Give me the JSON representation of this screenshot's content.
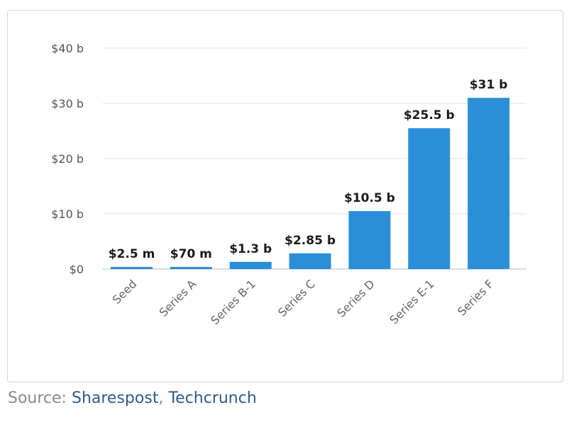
{
  "chart_data": {
    "type": "bar",
    "title": "",
    "xlabel": "",
    "ylabel": "",
    "categories": [
      "Seed",
      "Series A",
      "Series B-1",
      "Series C",
      "Series D",
      "Series E-1",
      "Series F"
    ],
    "values": [
      0.0025,
      0.07,
      1.3,
      2.85,
      10.5,
      25.5,
      31
    ],
    "data_labels": [
      "$2.5 m",
      "$70 m",
      "$1.3 b",
      "$2.85 b",
      "$10.5 b",
      "$25.5 b",
      "$31 b"
    ],
    "value_unit": "billions of USD",
    "ylim": [
      0,
      40
    ],
    "y_ticks": [
      0,
      10,
      20,
      30,
      40
    ],
    "y_tick_labels": [
      "$0",
      "$10 b",
      "$20 b",
      "$30 b",
      "$40 b"
    ],
    "grid": true,
    "legend": "none",
    "bar_color": "#2b8fd8",
    "grid_color": "#e3e3e3",
    "tick_label_color": "#555555",
    "category_label_color": "#666666"
  },
  "source": {
    "prefix": "Source:",
    "links": [
      "Sharespost",
      "Techcrunch"
    ],
    "separator": ","
  }
}
